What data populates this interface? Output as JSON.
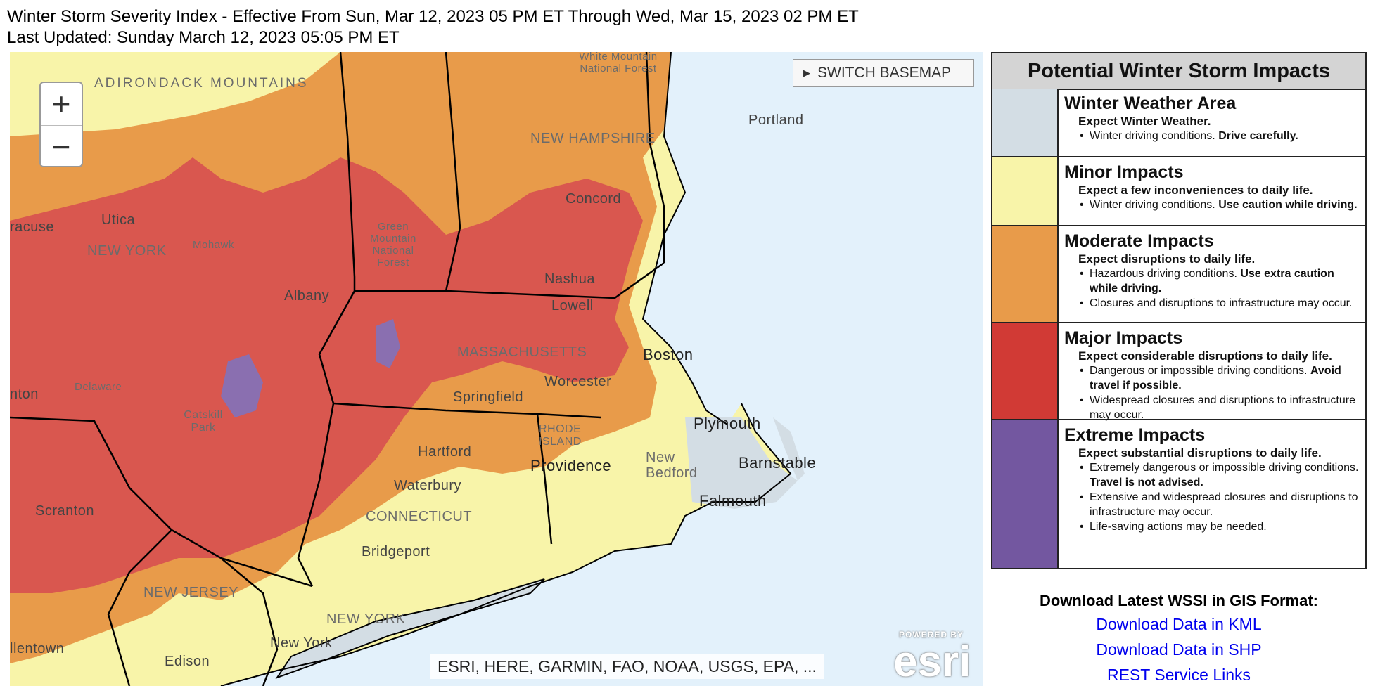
{
  "header": {
    "title": "Winter Storm Severity Index - Effective From Sun, Mar 12, 2023 05 PM ET Through Wed, Mar 15, 2023 02 PM ET",
    "updated": "Last Updated: Sunday March 12, 2023 05:05 PM ET"
  },
  "map": {
    "zoom_in": "+",
    "zoom_out": "−",
    "switch_basemap": "SWITCH BASEMAP",
    "attribution": "ESRI, HERE, GARMIN, FAO, NOAA, USGS, EPA, ...",
    "esri_powered": "POWERED BY",
    "esri_name": "esri",
    "labels": {
      "adirondack": "ADIRONDACK MOUNTAINS",
      "white_mountain": "White Mountain National Forest",
      "new_hampshire": "NEW HAMPSHIRE",
      "portland": "Portland",
      "utica": "Utica",
      "syracuse": "racuse",
      "new_york_state": "NEW YORK",
      "mohawk": "Mohawk",
      "green_mountain": "Green Mountain National Forest",
      "concord": "Concord",
      "albany": "Albany",
      "nashua": "Nashua",
      "lowell": "Lowell",
      "massachusetts": "MASSACHUSETTS",
      "boston": "Boston",
      "worcester": "Worcester",
      "springfield": "Springfield",
      "delaware": "Delaware",
      "catskill": "Catskill Park",
      "binghamton": "nton",
      "plymouth": "Plymouth",
      "barnstable": "Barnstable",
      "hartford": "Hartford",
      "rhode_island": "RHODE ISLAND",
      "providence": "Providence",
      "new_bedford": "New Bedford",
      "falmouth": "Falmouth",
      "waterbury": "Waterbury",
      "connecticut": "CONNECTICUT",
      "scranton": "Scranton",
      "bridgeport": "Bridgeport",
      "new_jersey": "NEW JERSEY",
      "new_york_city_state": "NEW YORK",
      "new_york_city": "New York",
      "allentown": "llentown",
      "edison": "Edison"
    }
  },
  "legend": {
    "title": "Potential Winter Storm Impacts",
    "categories": [
      {
        "name": "Winter Weather Area",
        "color": "#d3dde4",
        "subtitle": "Expect Winter Weather.",
        "bullets": [
          [
            "Winter driving conditions. ",
            "Drive carefully."
          ]
        ]
      },
      {
        "name": "Minor Impacts",
        "color": "#f8f4a9",
        "subtitle": "Expect a few inconveniences to daily life.",
        "bullets": [
          [
            "Winter driving conditions. ",
            "Use caution while driving."
          ]
        ]
      },
      {
        "name": "Moderate Impacts",
        "color": "#e89b4a",
        "subtitle": "Expect disruptions to daily life.",
        "bullets": [
          [
            "Hazardous driving conditions. ",
            "Use extra caution while driving."
          ],
          [
            "Closures and disruptions to infrastructure may occur.",
            ""
          ]
        ]
      },
      {
        "name": "Major Impacts",
        "color": "#d13a35",
        "subtitle": "Expect considerable disruptions to daily life.",
        "bullets": [
          [
            "Dangerous or impossible driving conditions. ",
            "Avoid travel if possible."
          ],
          [
            "Widespread closures and disruptions to infrastructure may occur.",
            ""
          ]
        ]
      },
      {
        "name": "Extreme Impacts",
        "color": "#7357a0",
        "subtitle": "Expect substantial disruptions to daily life.",
        "bullets": [
          [
            "Extremely dangerous or impossible driving conditions. ",
            "Travel is not advised."
          ],
          [
            "Extensive and widespread closures and disruptions to infrastructure may occur.",
            ""
          ],
          [
            "Life-saving actions may be needed.",
            ""
          ]
        ]
      }
    ]
  },
  "download": {
    "title": "Download Latest WSSI in GIS Format:",
    "links": [
      "Download Data in KML",
      "Download Data in SHP",
      "REST Service Links"
    ]
  }
}
